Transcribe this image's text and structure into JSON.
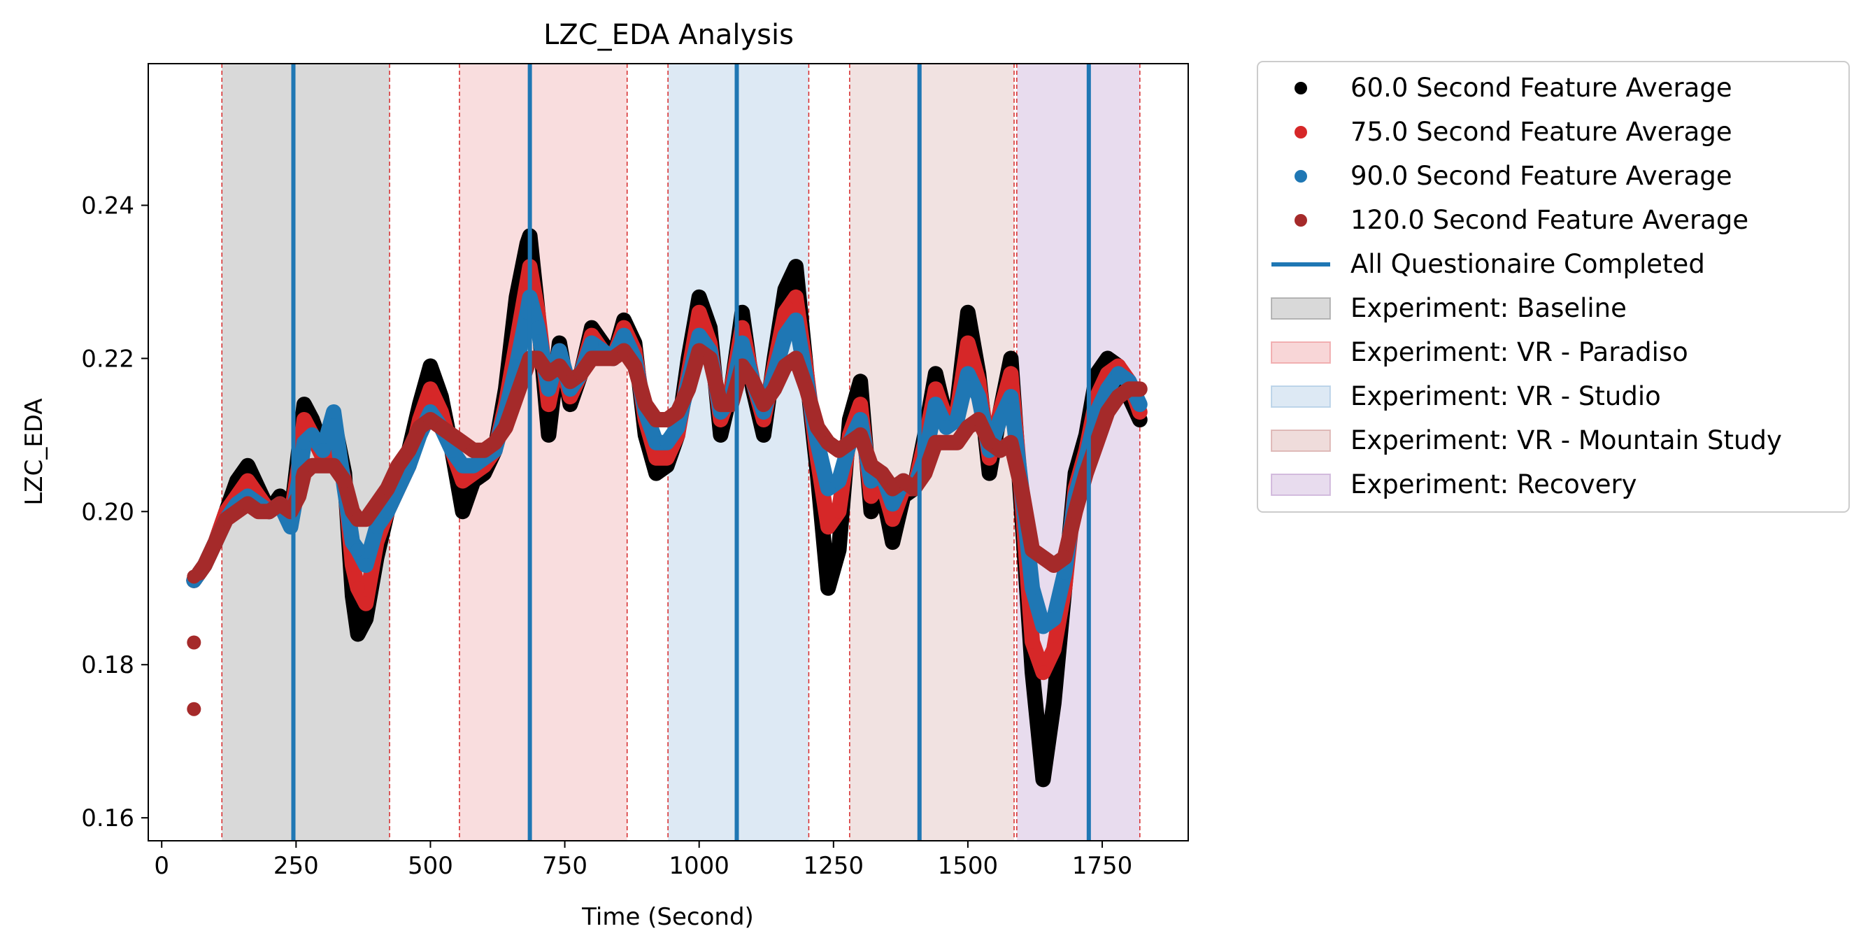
{
  "chart_data": {
    "type": "scatter",
    "title": "LZC_EDA Analysis",
    "xlabel": "Time (Second)",
    "ylabel": "LZC_EDA",
    "xlim": [
      -25,
      1910
    ],
    "ylim": [
      0.157,
      0.2585
    ],
    "xticks": [
      0,
      250,
      500,
      750,
      1000,
      1250,
      1500,
      1750
    ],
    "yticks": [
      0.16,
      0.18,
      0.2,
      0.22,
      0.24
    ],
    "ytick_labels": [
      "0.16",
      "0.18",
      "0.20",
      "0.22",
      "0.24"
    ],
    "grid": false,
    "legend_position": "outside-right",
    "legend_entries": [
      {
        "label": "60.0 Second Feature Average",
        "kind": "marker",
        "color": "#000000"
      },
      {
        "label": "75.0 Second Feature Average",
        "kind": "marker",
        "color": "#d62728"
      },
      {
        "label": "90.0 Second Feature Average",
        "kind": "marker",
        "color": "#1f77b4"
      },
      {
        "label": "120.0 Second Feature Average",
        "kind": "marker",
        "color": "#a52a2a"
      },
      {
        "label": "All Questionaire Completed",
        "kind": "line",
        "color": "#1f77b4"
      },
      {
        "label": "Experiment: Baseline",
        "kind": "patch",
        "color": "#808080"
      },
      {
        "label": "Experiment: VR - Paradiso",
        "kind": "patch",
        "color": "#e8787c"
      },
      {
        "label": "Experiment: VR - Studio",
        "kind": "patch",
        "color": "#8fb7d9"
      },
      {
        "label": "Experiment: VR - Mountain Study",
        "kind": "patch",
        "color": "#c98a88"
      },
      {
        "label": "Experiment: Recovery",
        "kind": "patch",
        "color": "#b48cc6"
      }
    ],
    "experiment_spans": [
      {
        "name": "Experiment: Baseline",
        "start": 112,
        "end": 424,
        "color": "#808080",
        "alpha": 0.3
      },
      {
        "name": "Experiment: VR - Paradiso",
        "start": 554,
        "end": 866,
        "color": "#e8787c",
        "alpha": 0.25
      },
      {
        "name": "Experiment: VR - Studio",
        "start": 942,
        "end": 1204,
        "color": "#8fb7d9",
        "alpha": 0.3
      },
      {
        "name": "Experiment: VR - Mountain Study",
        "start": 1280,
        "end": 1586,
        "color": "#c98a88",
        "alpha": 0.25
      },
      {
        "name": "Experiment: Recovery",
        "start": 1591,
        "end": 1820,
        "color": "#b48cc6",
        "alpha": 0.3
      }
    ],
    "questionnaire_completed": [
      245,
      685,
      1070,
      1410,
      1725
    ],
    "series": [
      {
        "name": "60.0 Second Feature Average",
        "color": "#000000",
        "x": [
          60,
          80,
          100,
          120,
          140,
          160,
          180,
          200,
          220,
          240,
          255,
          265,
          280,
          300,
          320,
          340,
          355,
          365,
          380,
          400,
          420,
          440,
          460,
          480,
          500,
          520,
          540,
          560,
          580,
          600,
          620,
          640,
          660,
          680,
          685,
          700,
          720,
          740,
          760,
          780,
          800,
          820,
          840,
          860,
          880,
          900,
          920,
          940,
          960,
          980,
          1000,
          1020,
          1040,
          1060,
          1080,
          1100,
          1120,
          1140,
          1160,
          1180,
          1200,
          1220,
          1240,
          1260,
          1280,
          1300,
          1320,
          1340,
          1360,
          1380,
          1400,
          1420,
          1440,
          1460,
          1480,
          1500,
          1520,
          1540,
          1560,
          1580,
          1600,
          1620,
          1640,
          1660,
          1680,
          1700,
          1720,
          1740,
          1760,
          1780,
          1800,
          1820
        ],
        "y": [
          0.191,
          0.193,
          0.196,
          0.2,
          0.204,
          0.206,
          0.203,
          0.2,
          0.202,
          0.199,
          0.208,
          0.214,
          0.212,
          0.208,
          0.212,
          0.205,
          0.189,
          0.184,
          0.186,
          0.194,
          0.2,
          0.204,
          0.208,
          0.214,
          0.219,
          0.215,
          0.208,
          0.2,
          0.204,
          0.205,
          0.208,
          0.216,
          0.228,
          0.235,
          0.236,
          0.226,
          0.21,
          0.222,
          0.214,
          0.218,
          0.224,
          0.222,
          0.22,
          0.225,
          0.222,
          0.21,
          0.205,
          0.206,
          0.21,
          0.22,
          0.228,
          0.224,
          0.21,
          0.216,
          0.226,
          0.216,
          0.21,
          0.22,
          0.229,
          0.232,
          0.218,
          0.205,
          0.19,
          0.195,
          0.212,
          0.217,
          0.2,
          0.203,
          0.196,
          0.202,
          0.203,
          0.21,
          0.218,
          0.212,
          0.214,
          0.226,
          0.218,
          0.205,
          0.213,
          0.22,
          0.2,
          0.179,
          0.165,
          0.175,
          0.19,
          0.205,
          0.21,
          0.218,
          0.22,
          0.219,
          0.215,
          0.212
        ]
      },
      {
        "name": "75.0 Second Feature Average",
        "color": "#d62728",
        "x": [
          60,
          80,
          100,
          120,
          140,
          160,
          180,
          200,
          220,
          240,
          255,
          265,
          280,
          300,
          320,
          340,
          355,
          365,
          380,
          400,
          420,
          440,
          460,
          480,
          500,
          520,
          540,
          560,
          580,
          600,
          620,
          640,
          660,
          680,
          685,
          700,
          720,
          740,
          760,
          780,
          800,
          820,
          840,
          860,
          880,
          900,
          920,
          940,
          960,
          980,
          1000,
          1020,
          1040,
          1060,
          1080,
          1100,
          1120,
          1140,
          1160,
          1180,
          1200,
          1220,
          1240,
          1260,
          1280,
          1300,
          1320,
          1340,
          1360,
          1380,
          1400,
          1420,
          1440,
          1460,
          1480,
          1500,
          1520,
          1540,
          1560,
          1580,
          1600,
          1620,
          1640,
          1660,
          1680,
          1700,
          1720,
          1740,
          1760,
          1780,
          1800,
          1820
        ],
        "y": [
          0.191,
          0.193,
          0.196,
          0.2,
          0.202,
          0.204,
          0.202,
          0.2,
          0.201,
          0.199,
          0.206,
          0.212,
          0.21,
          0.207,
          0.21,
          0.204,
          0.193,
          0.19,
          0.188,
          0.196,
          0.2,
          0.203,
          0.206,
          0.212,
          0.216,
          0.213,
          0.208,
          0.204,
          0.205,
          0.206,
          0.208,
          0.214,
          0.222,
          0.23,
          0.232,
          0.226,
          0.214,
          0.221,
          0.215,
          0.218,
          0.223,
          0.221,
          0.22,
          0.224,
          0.221,
          0.212,
          0.207,
          0.207,
          0.21,
          0.218,
          0.226,
          0.222,
          0.212,
          0.216,
          0.224,
          0.217,
          0.212,
          0.219,
          0.226,
          0.228,
          0.218,
          0.207,
          0.198,
          0.2,
          0.21,
          0.214,
          0.202,
          0.204,
          0.199,
          0.203,
          0.203,
          0.209,
          0.216,
          0.212,
          0.213,
          0.222,
          0.217,
          0.207,
          0.213,
          0.218,
          0.202,
          0.183,
          0.179,
          0.182,
          0.19,
          0.203,
          0.208,
          0.215,
          0.218,
          0.219,
          0.217,
          0.213
        ]
      },
      {
        "name": "90.0 Second Feature Average",
        "color": "#1f77b4",
        "x": [
          60,
          80,
          100,
          120,
          140,
          160,
          180,
          200,
          220,
          240,
          255,
          265,
          280,
          300,
          320,
          340,
          355,
          365,
          380,
          400,
          420,
          440,
          460,
          480,
          500,
          520,
          540,
          560,
          580,
          600,
          620,
          640,
          660,
          680,
          685,
          700,
          720,
          740,
          760,
          780,
          800,
          820,
          840,
          860,
          880,
          900,
          920,
          940,
          960,
          980,
          1000,
          1020,
          1040,
          1060,
          1080,
          1100,
          1120,
          1140,
          1160,
          1180,
          1200,
          1220,
          1240,
          1260,
          1280,
          1300,
          1320,
          1340,
          1360,
          1380,
          1400,
          1420,
          1440,
          1460,
          1480,
          1500,
          1520,
          1540,
          1560,
          1580,
          1600,
          1620,
          1640,
          1660,
          1680,
          1700,
          1720,
          1740,
          1760,
          1780,
          1800,
          1820
        ],
        "y": [
          0.191,
          0.193,
          0.196,
          0.199,
          0.201,
          0.202,
          0.201,
          0.2,
          0.201,
          0.198,
          0.204,
          0.209,
          0.21,
          0.208,
          0.213,
          0.203,
          0.196,
          0.195,
          0.193,
          0.198,
          0.2,
          0.203,
          0.206,
          0.21,
          0.213,
          0.211,
          0.208,
          0.206,
          0.206,
          0.207,
          0.208,
          0.213,
          0.219,
          0.226,
          0.228,
          0.224,
          0.216,
          0.221,
          0.216,
          0.218,
          0.222,
          0.221,
          0.22,
          0.223,
          0.22,
          0.213,
          0.209,
          0.209,
          0.211,
          0.217,
          0.223,
          0.221,
          0.213,
          0.215,
          0.222,
          0.217,
          0.213,
          0.218,
          0.223,
          0.225,
          0.217,
          0.209,
          0.203,
          0.204,
          0.209,
          0.212,
          0.204,
          0.205,
          0.201,
          0.204,
          0.203,
          0.207,
          0.214,
          0.211,
          0.212,
          0.218,
          0.215,
          0.208,
          0.212,
          0.215,
          0.203,
          0.19,
          0.185,
          0.186,
          0.192,
          0.202,
          0.207,
          0.213,
          0.216,
          0.218,
          0.217,
          0.214
        ]
      },
      {
        "name": "120.0 Second Feature Average",
        "color": "#a52a2a",
        "x": [
          60,
          60,
          60,
          70,
          80,
          100,
          120,
          140,
          160,
          180,
          200,
          220,
          240,
          255,
          265,
          280,
          300,
          320,
          340,
          355,
          365,
          380,
          400,
          420,
          440,
          460,
          480,
          500,
          520,
          540,
          560,
          580,
          600,
          620,
          640,
          660,
          680,
          685,
          700,
          720,
          740,
          760,
          780,
          800,
          820,
          840,
          860,
          880,
          900,
          920,
          940,
          960,
          980,
          1000,
          1020,
          1040,
          1060,
          1080,
          1100,
          1120,
          1140,
          1160,
          1180,
          1200,
          1220,
          1240,
          1260,
          1280,
          1300,
          1320,
          1340,
          1360,
          1380,
          1400,
          1420,
          1440,
          1460,
          1480,
          1500,
          1520,
          1540,
          1560,
          1580,
          1600,
          1620,
          1640,
          1660,
          1680,
          1700,
          1720,
          1740,
          1760,
          1780,
          1800,
          1820
        ],
        "y": [
          0.1742,
          0.1829,
          0.1915,
          0.192,
          0.193,
          0.196,
          0.199,
          0.2,
          0.201,
          0.2,
          0.2,
          0.201,
          0.2,
          0.202,
          0.205,
          0.206,
          0.206,
          0.206,
          0.204,
          0.2,
          0.199,
          0.199,
          0.201,
          0.203,
          0.206,
          0.208,
          0.211,
          0.212,
          0.211,
          0.21,
          0.209,
          0.208,
          0.208,
          0.209,
          0.211,
          0.215,
          0.219,
          0.22,
          0.22,
          0.218,
          0.219,
          0.217,
          0.218,
          0.22,
          0.22,
          0.22,
          0.221,
          0.219,
          0.214,
          0.212,
          0.212,
          0.213,
          0.216,
          0.221,
          0.22,
          0.214,
          0.214,
          0.219,
          0.217,
          0.214,
          0.216,
          0.219,
          0.22,
          0.216,
          0.211,
          0.209,
          0.208,
          0.209,
          0.21,
          0.206,
          0.205,
          0.203,
          0.204,
          0.203,
          0.205,
          0.209,
          0.209,
          0.209,
          0.211,
          0.212,
          0.209,
          0.208,
          0.209,
          0.203,
          0.195,
          0.194,
          0.193,
          0.194,
          0.2,
          0.205,
          0.209,
          0.213,
          0.215,
          0.216,
          0.216
        ]
      }
    ]
  }
}
